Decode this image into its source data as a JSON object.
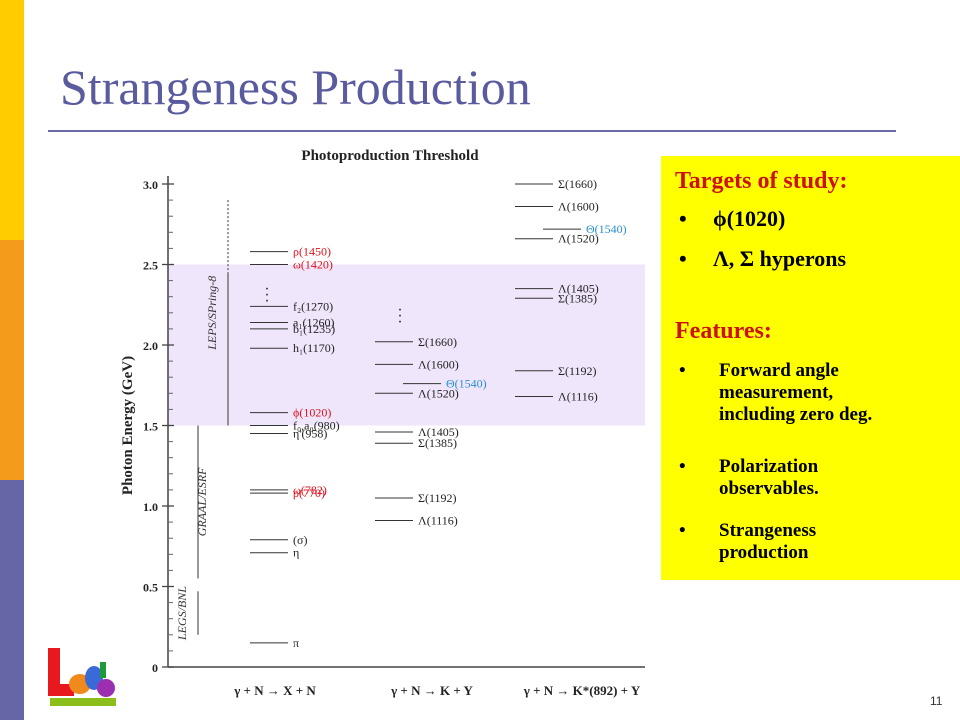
{
  "slide": {
    "title": "Strangeness Production",
    "page_number": "11"
  },
  "colors": {
    "stripe_top": "#ffcc00",
    "stripe_mid": "#f59b1c",
    "stripe_bottom": "#6666a6",
    "title": "#5a5a9e",
    "highlight_box": "#ffff00",
    "heading_red": "#cc1111",
    "band": "#efe6fb",
    "label_red": "#e0101a",
    "label_blue": "#2a8fd0"
  },
  "diagram": {
    "title": "Photoproduction Threshold",
    "y_label": "Photon Energy  (GeV)",
    "y_ticks": [
      "3.0",
      "2.5",
      "2.0",
      "1.5",
      "1.0",
      "0.5",
      "0"
    ],
    "band_range_gev": [
      1.5,
      2.5
    ],
    "facilities": [
      {
        "label": "LEPS/SPring-8",
        "range_gev": [
          1.5,
          2.9
        ]
      },
      {
        "label": "GRAAL/ESRF",
        "range_gev": [
          0.55,
          1.5
        ]
      },
      {
        "label": "LEGS/BNL",
        "range_gev": [
          0.2,
          0.47
        ]
      }
    ],
    "columns": [
      {
        "reaction": "γ + N → X + N",
        "levels": [
          {
            "label": "ρ(1450)",
            "e": 2.58,
            "color": "red"
          },
          {
            "label": "ω(1420)",
            "e": 2.5,
            "color": "red"
          },
          {
            "label": "f₂(1270)",
            "e": 2.24,
            "color": "black"
          },
          {
            "label": "a₁(1260)",
            "e": 2.14,
            "color": "black"
          },
          {
            "label": "b₁(1235)",
            "e": 2.1,
            "color": "black"
          },
          {
            "label": "h₁(1170)",
            "e": 1.98,
            "color": "black"
          },
          {
            "label": "ϕ(1020)",
            "e": 1.58,
            "color": "red"
          },
          {
            "label": "f₀,a₀(980)",
            "e": 1.5,
            "color": "black"
          },
          {
            "label": "η'(958)",
            "e": 1.45,
            "color": "black"
          },
          {
            "label": "ω(782)",
            "e": 1.1,
            "color": "red"
          },
          {
            "label": "ρ(770)",
            "e": 1.08,
            "color": "red"
          },
          {
            "label": "(σ)",
            "e": 0.79,
            "color": "black"
          },
          {
            "label": "η",
            "e": 0.71,
            "color": "black"
          },
          {
            "label": "π",
            "e": 0.15,
            "color": "black"
          }
        ]
      },
      {
        "reaction": "γ + N → K + Y",
        "levels": [
          {
            "label": "Σ(1660)",
            "e": 2.02,
            "color": "black"
          },
          {
            "label": "Λ(1600)",
            "e": 1.88,
            "color": "black"
          },
          {
            "label": "Θ(1540)",
            "e": 1.76,
            "color": "blue"
          },
          {
            "label": "Λ(1520)",
            "e": 1.7,
            "color": "black"
          },
          {
            "label": "Λ(1405)",
            "e": 1.46,
            "color": "black"
          },
          {
            "label": "Σ(1385)",
            "e": 1.39,
            "color": "black"
          },
          {
            "label": "Σ(1192)",
            "e": 1.05,
            "color": "black"
          },
          {
            "label": "Λ(1116)",
            "e": 0.91,
            "color": "black"
          }
        ]
      },
      {
        "reaction": "γ + N → K*(892) + Y",
        "levels": [
          {
            "label": "Σ(1660)",
            "e": 3.0,
            "color": "black"
          },
          {
            "label": "Λ(1600)",
            "e": 2.86,
            "color": "black"
          },
          {
            "label": "Θ(1540)",
            "e": 2.72,
            "color": "blue"
          },
          {
            "label": "Λ(1520)",
            "e": 2.66,
            "color": "black"
          },
          {
            "label": "Λ(1405)",
            "e": 2.35,
            "color": "black"
          },
          {
            "label": "Σ(1385)",
            "e": 2.29,
            "color": "black"
          },
          {
            "label": "Σ(1192)",
            "e": 1.84,
            "color": "black"
          },
          {
            "label": "Λ(1116)",
            "e": 1.68,
            "color": "black"
          }
        ]
      }
    ]
  },
  "targets": {
    "heading": "Targets of study:",
    "items": [
      "ϕ(1020)",
      "Λ, Σ hyperons"
    ],
    "bullet": "•"
  },
  "features": {
    "heading": "Features:",
    "items": [
      [
        "Forward angle",
        "measurement,",
        "including zero deg."
      ],
      [
        "Polarization",
        "observables."
      ],
      [
        "Strangeness",
        "production"
      ]
    ],
    "bullet": "•"
  },
  "logo": {
    "icon": "leps-logo-icon"
  }
}
